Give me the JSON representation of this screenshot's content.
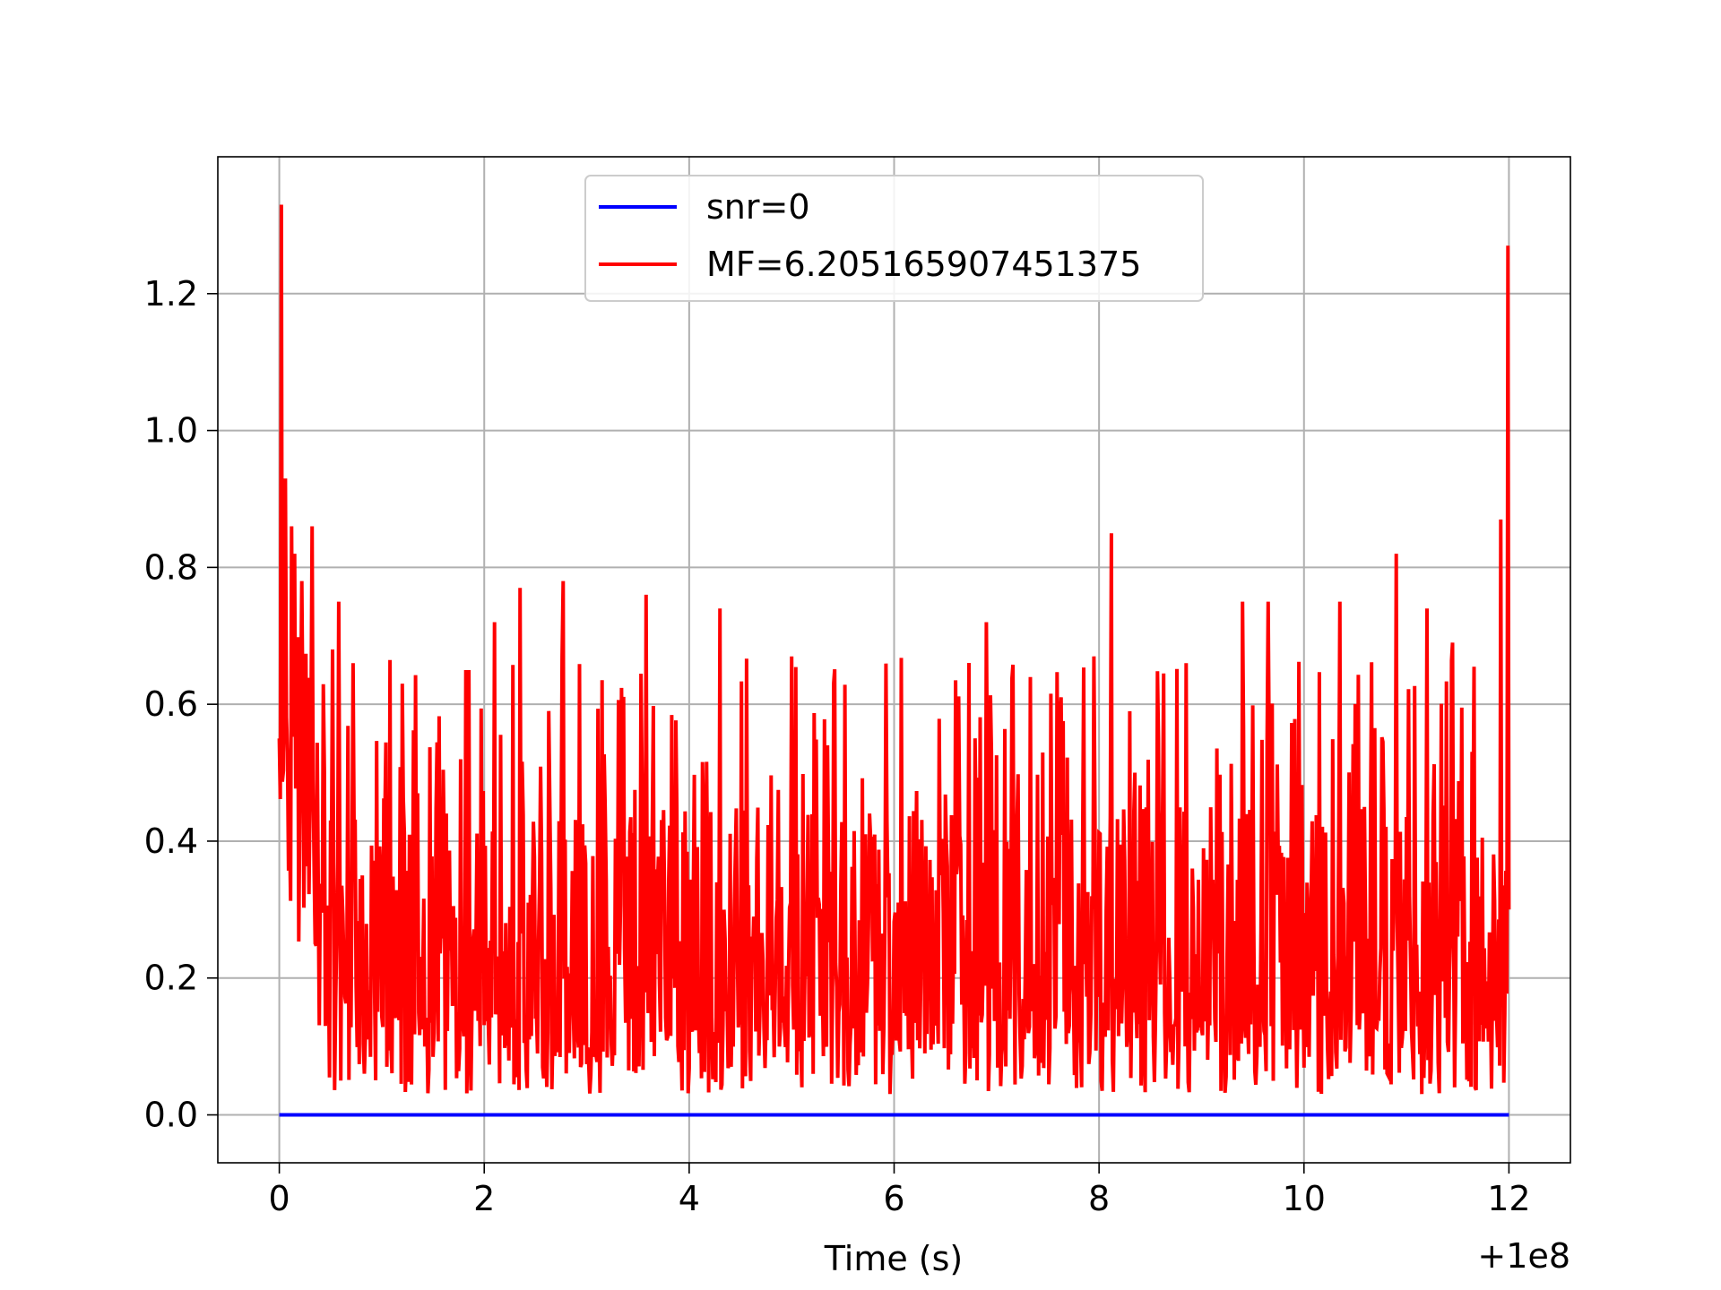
{
  "chart_data": {
    "type": "line",
    "title": "",
    "xlabel": "Time (s)",
    "ylabel": "",
    "x_offset_label": "+1e8",
    "xlim": [
      -0.6,
      12.6
    ],
    "ylim": [
      -0.07,
      1.4
    ],
    "xticks": [
      0,
      2,
      4,
      6,
      8,
      10,
      12
    ],
    "yticks": [
      0.0,
      0.2,
      0.4,
      0.6,
      0.8,
      1.0,
      1.2
    ],
    "ytick_labels": [
      "0.0",
      "0.2",
      "0.4",
      "0.6",
      "0.8",
      "1.0",
      "1.2"
    ],
    "grid": true,
    "legend_position": "upper-center",
    "series": [
      {
        "name": "snr=0",
        "color": "#0000ff",
        "x": [
          0,
          12
        ],
        "y": [
          0.0,
          0.0
        ]
      },
      {
        "name": "MF=6.205165907451375",
        "color": "#ff0000",
        "x_range": [
          0,
          12
        ],
        "samples": 1200,
        "peaks": [
          {
            "x": 0.0,
            "y": 0.55
          },
          {
            "x": 0.02,
            "y": 1.33
          },
          {
            "x": 0.06,
            "y": 0.93
          },
          {
            "x": 0.12,
            "y": 0.86
          },
          {
            "x": 0.15,
            "y": 0.82
          },
          {
            "x": 0.22,
            "y": 0.78
          },
          {
            "x": 0.32,
            "y": 0.86
          },
          {
            "x": 0.52,
            "y": 0.68
          },
          {
            "x": 0.58,
            "y": 0.75
          },
          {
            "x": 0.72,
            "y": 0.66
          },
          {
            "x": 1.2,
            "y": 0.63
          },
          {
            "x": 1.85,
            "y": 0.65
          },
          {
            "x": 2.1,
            "y": 0.72
          },
          {
            "x": 2.35,
            "y": 0.77
          },
          {
            "x": 2.77,
            "y": 0.78
          },
          {
            "x": 3.58,
            "y": 0.76
          },
          {
            "x": 4.3,
            "y": 0.74
          },
          {
            "x": 5.0,
            "y": 0.67
          },
          {
            "x": 6.9,
            "y": 0.72
          },
          {
            "x": 7.95,
            "y": 0.67
          },
          {
            "x": 8.12,
            "y": 0.85
          },
          {
            "x": 8.85,
            "y": 0.66
          },
          {
            "x": 9.4,
            "y": 0.75
          },
          {
            "x": 9.65,
            "y": 0.75
          },
          {
            "x": 10.35,
            "y": 0.75
          },
          {
            "x": 10.9,
            "y": 0.82
          },
          {
            "x": 11.2,
            "y": 0.74
          },
          {
            "x": 11.45,
            "y": 0.69
          },
          {
            "x": 11.92,
            "y": 0.87
          },
          {
            "x": 11.99,
            "y": 1.27
          },
          {
            "x": 12.0,
            "y": 0.3
          }
        ]
      }
    ]
  }
}
